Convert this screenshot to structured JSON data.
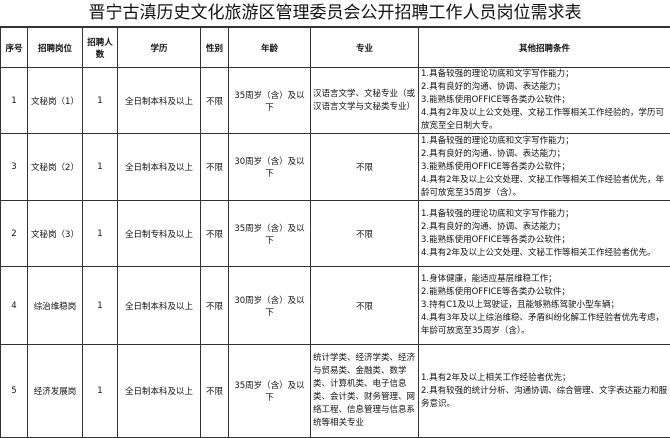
{
  "title": "晋宁古滇历史文化旅游区管理委员会公开招聘工作人员岗位需求表",
  "headers": [
    "序号",
    "招聘岗位",
    "招聘人数",
    "学历",
    "性别",
    "年龄",
    "专业",
    "其他招聘条件"
  ],
  "rows": [
    {
      "no": "1",
      "post": "文秘岗（1）",
      "count": "1",
      "edu": "全日制本科及以上",
      "gender": "不限",
      "age": "35周岁（含）及以下",
      "major": "汉语言文学、文秘专业（或汉语言文学与文秘类专业）",
      "conditions": [
        "1.具备较强的理论功底和文字写作能力；",
        "2.具有良好的沟通、协调、表达能力；",
        "3.能熟练使用OFFICE等各类办公软件；",
        "4.具有2年及以上公文处理、文秘工作等相关工作经验的，学历可放宽至全日制大专。"
      ]
    },
    {
      "no": "3",
      "post": "文秘岗（2）",
      "count": "1",
      "edu": "全日制本科及以上",
      "gender": "不限",
      "age": "30周岁（含）及以下",
      "major": "不限",
      "conditions": [
        "1.具备较强的理论功底和文字写作能力；",
        "2.具有良好的沟通、协调、表达能力；",
        "3.能熟练使用OFFICE等各类办公软件；",
        "4.具有2年及以上公文处理、文秘工作等相关工作经验者优先，年龄可放宽至35周岁（含）。"
      ]
    },
    {
      "no": "2",
      "post": "文秘岗（3）",
      "count": "1",
      "edu": "全日制专科及以上",
      "gender": "不限",
      "age": "35周岁（含）及以下",
      "major": "不限",
      "conditions": [
        "1.具备较强的理论功底和文字写作能力；",
        "2.具有良好的沟通、协调、表达能力；",
        "3.能熟练使用OFFICE等各类办公软件；",
        "4.具有2年及以上公文处理、文秘工作等相关工作经验者优先。"
      ]
    },
    {
      "no": "4",
      "post": "综治维稳岗",
      "count": "1",
      "edu": "全日制本科及以上",
      "gender": "不限",
      "age": "30周岁（含）及以下",
      "major": "不限",
      "conditions": [
        "1.身体健康，能适应基层维稳工作；",
        "2.能熟练使用OFFICE等各类办公软件；",
        "3.持有C1及以上驾驶证，且能够熟练驾驶小型车辆；",
        "4.具有3年及以上综治维稳、矛盾纠纷化解工作经验者优先考虑，年龄可放宽至35周岁（含）。"
      ]
    },
    {
      "no": "5",
      "post": "经济发展岗",
      "count": "1",
      "edu": "全日制本科及以上",
      "gender": "不限",
      "age": "35周岁（含）及以下",
      "major": "统计学类、经济学类、经济与贸易类、金融类、数学类、计算机类、电子信息类、会计类、财务管理、网络工程、信息管理与信息系统等相关专业",
      "conditions": [
        "1.具有2年及以上相关工作经验者优先；",
        "2.具有较强的统计分析、沟通协调、综合管理、文字表达能力和服务意识。"
      ]
    }
  ]
}
